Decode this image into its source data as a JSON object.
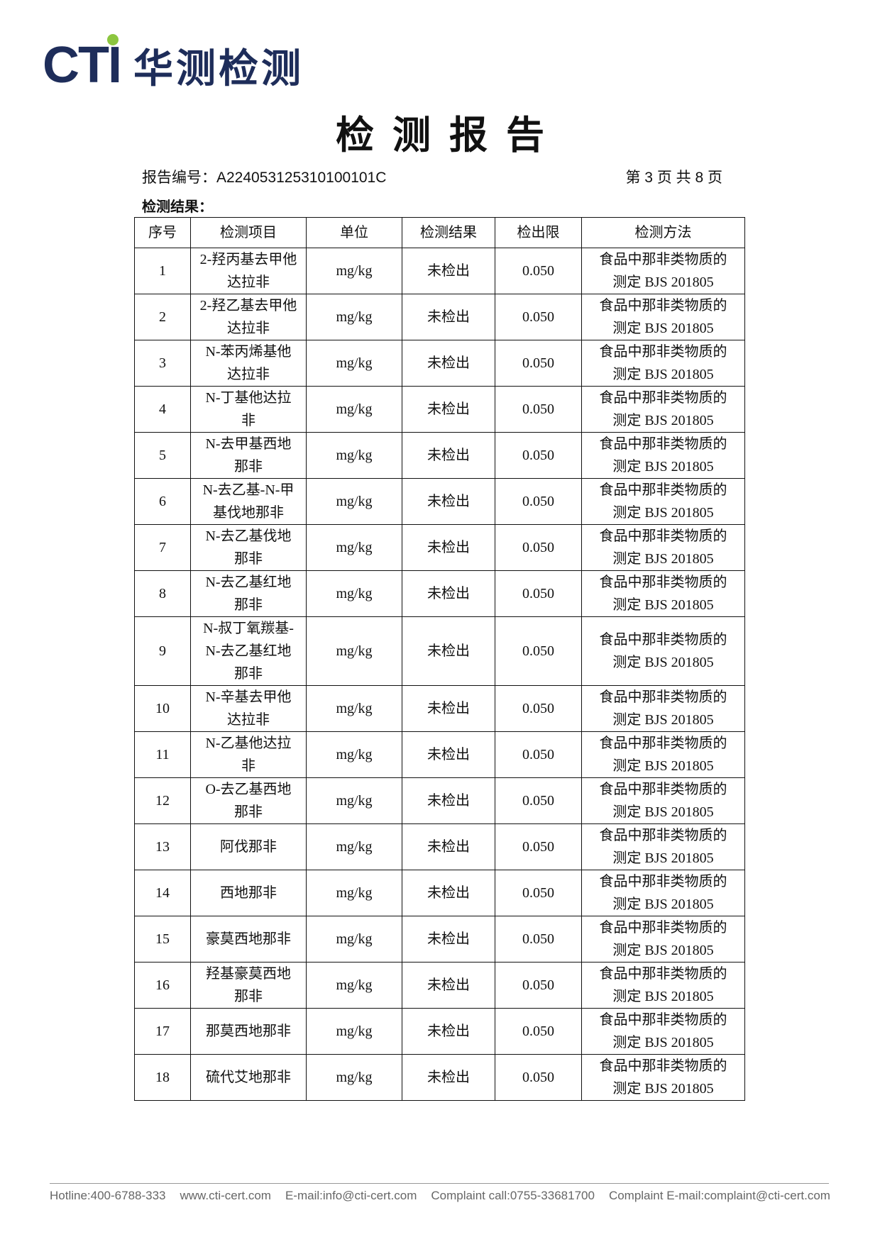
{
  "header": {
    "logo_mark": "CTI",
    "logo_text": "华测检测"
  },
  "title": "检测报告",
  "report_no_label": "报告编号：",
  "report_no": "A224053125310100101C",
  "page_info": "第 3 页 共 8 页",
  "section": "检测结果：",
  "table": {
    "headers": [
      "序号",
      "检测项目",
      "单位",
      "检测结果",
      "检出限",
      "检测方法"
    ],
    "rows": [
      [
        "1",
        "2-羟丙基去甲他达拉非",
        "mg/kg",
        "未检出",
        "0.050",
        "食品中那非类物质的测定 BJS 201805"
      ],
      [
        "2",
        "2-羟乙基去甲他达拉非",
        "mg/kg",
        "未检出",
        "0.050",
        "食品中那非类物质的测定 BJS 201805"
      ],
      [
        "3",
        "N-苯丙烯基他达拉非",
        "mg/kg",
        "未检出",
        "0.050",
        "食品中那非类物质的测定 BJS 201805"
      ],
      [
        "4",
        "N-丁基他达拉非",
        "mg/kg",
        "未检出",
        "0.050",
        "食品中那非类物质的测定 BJS 201805"
      ],
      [
        "5",
        "N-去甲基西地那非",
        "mg/kg",
        "未检出",
        "0.050",
        "食品中那非类物质的测定 BJS 201805"
      ],
      [
        "6",
        "N-去乙基-N-甲基伐地那非",
        "mg/kg",
        "未检出",
        "0.050",
        "食品中那非类物质的测定 BJS 201805"
      ],
      [
        "7",
        "N-去乙基伐地那非",
        "mg/kg",
        "未检出",
        "0.050",
        "食品中那非类物质的测定 BJS 201805"
      ],
      [
        "8",
        "N-去乙基红地那非",
        "mg/kg",
        "未检出",
        "0.050",
        "食品中那非类物质的测定 BJS 201805"
      ],
      [
        "9",
        "N-叔丁氧羰基-N-去乙基红地那非",
        "mg/kg",
        "未检出",
        "0.050",
        "食品中那非类物质的测定 BJS 201805"
      ],
      [
        "10",
        "N-辛基去甲他达拉非",
        "mg/kg",
        "未检出",
        "0.050",
        "食品中那非类物质的测定 BJS 201805"
      ],
      [
        "11",
        "N-乙基他达拉非",
        "mg/kg",
        "未检出",
        "0.050",
        "食品中那非类物质的测定 BJS 201805"
      ],
      [
        "12",
        "O-去乙基西地那非",
        "mg/kg",
        "未检出",
        "0.050",
        "食品中那非类物质的测定 BJS 201805"
      ],
      [
        "13",
        "阿伐那非",
        "mg/kg",
        "未检出",
        "0.050",
        "食品中那非类物质的测定 BJS 201805"
      ],
      [
        "14",
        "西地那非",
        "mg/kg",
        "未检出",
        "0.050",
        "食品中那非类物质的测定 BJS 201805"
      ],
      [
        "15",
        "豪莫西地那非",
        "mg/kg",
        "未检出",
        "0.050",
        "食品中那非类物质的测定 BJS 201805"
      ],
      [
        "16",
        "羟基豪莫西地那非",
        "mg/kg",
        "未检出",
        "0.050",
        "食品中那非类物质的测定 BJS 201805"
      ],
      [
        "17",
        "那莫西地那非",
        "mg/kg",
        "未检出",
        "0.050",
        "食品中那非类物质的测定 BJS 201805"
      ],
      [
        "18",
        "硫代艾地那非",
        "mg/kg",
        "未检出",
        "0.050",
        "食品中那非类物质的测定 BJS 201805"
      ]
    ]
  },
  "footer": [
    "Hotline:400-6788-333",
    "www.cti-cert.com",
    "E-mail:info@cti-cert.com",
    "Complaint call:0755-33681700",
    "Complaint E-mail:complaint@cti-cert.com"
  ]
}
